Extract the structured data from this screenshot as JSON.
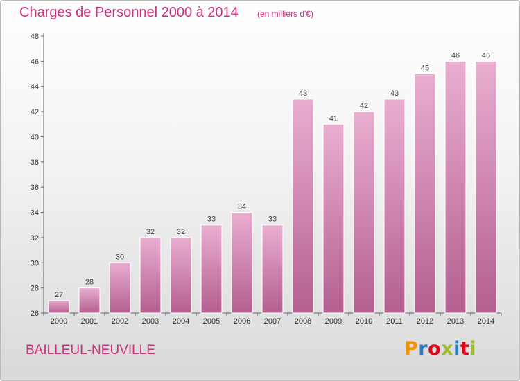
{
  "header": {
    "title": "Charges de Personnel 2000 à 2014",
    "subtitle": "(en milliers d'€)"
  },
  "footer": {
    "place": "BAILLEUL-NEUVILLE",
    "logo": "Proxiti",
    "logo_colors": [
      "#f29400",
      "#2a7ac0",
      "#e2001a",
      "#9bbd2b",
      "#2a7ac0",
      "#e2001a",
      "#9bbd2b"
    ]
  },
  "colors": {
    "bar": "#d580b0",
    "bar_light": "#e9aed0",
    "bar_dark": "#b45f90",
    "accent": "#d0307f"
  },
  "chart_data": {
    "type": "bar",
    "categories": [
      "2000",
      "2001",
      "2002",
      "2003",
      "2004",
      "2005",
      "2006",
      "2007",
      "2008",
      "2009",
      "2010",
      "2011",
      "2012",
      "2013",
      "2014"
    ],
    "values": [
      27,
      28,
      30,
      32,
      32,
      33,
      34,
      33,
      43,
      41,
      42,
      43,
      45,
      46,
      46
    ],
    "ylim": [
      26,
      48
    ],
    "yticks": [
      26,
      28,
      30,
      32,
      34,
      36,
      38,
      40,
      42,
      44,
      46,
      48
    ],
    "grid": false,
    "xlabel": "",
    "ylabel": ""
  }
}
